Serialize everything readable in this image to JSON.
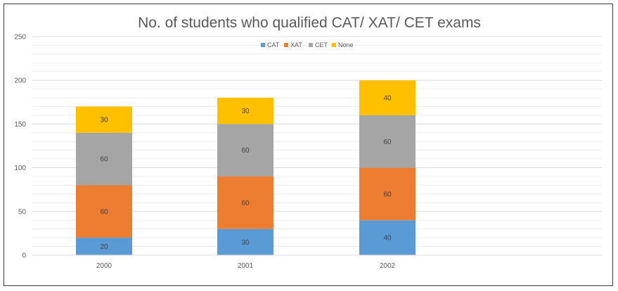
{
  "chart_data": {
    "type": "bar",
    "stacked": true,
    "title": "No. of students who qualified CAT/ XAT/ CET exams",
    "xlabel": "",
    "ylabel": "",
    "categories": [
      "2000",
      "2001",
      "2002"
    ],
    "series": [
      {
        "name": "CAT",
        "values": [
          20,
          30,
          40
        ],
        "color": "#5B9BD5"
      },
      {
        "name": "XAT",
        "values": [
          60,
          60,
          60
        ],
        "color": "#ED7D31"
      },
      {
        "name": "CET",
        "values": [
          60,
          60,
          60
        ],
        "color": "#A5A5A5"
      },
      {
        "name": "None",
        "values": [
          30,
          30,
          40
        ],
        "color": "#FFC000"
      }
    ],
    "ylim": [
      0,
      250
    ],
    "yticks": [
      "0",
      "50",
      "100",
      "150",
      "200",
      "250"
    ],
    "grid": true,
    "legend": "top"
  }
}
